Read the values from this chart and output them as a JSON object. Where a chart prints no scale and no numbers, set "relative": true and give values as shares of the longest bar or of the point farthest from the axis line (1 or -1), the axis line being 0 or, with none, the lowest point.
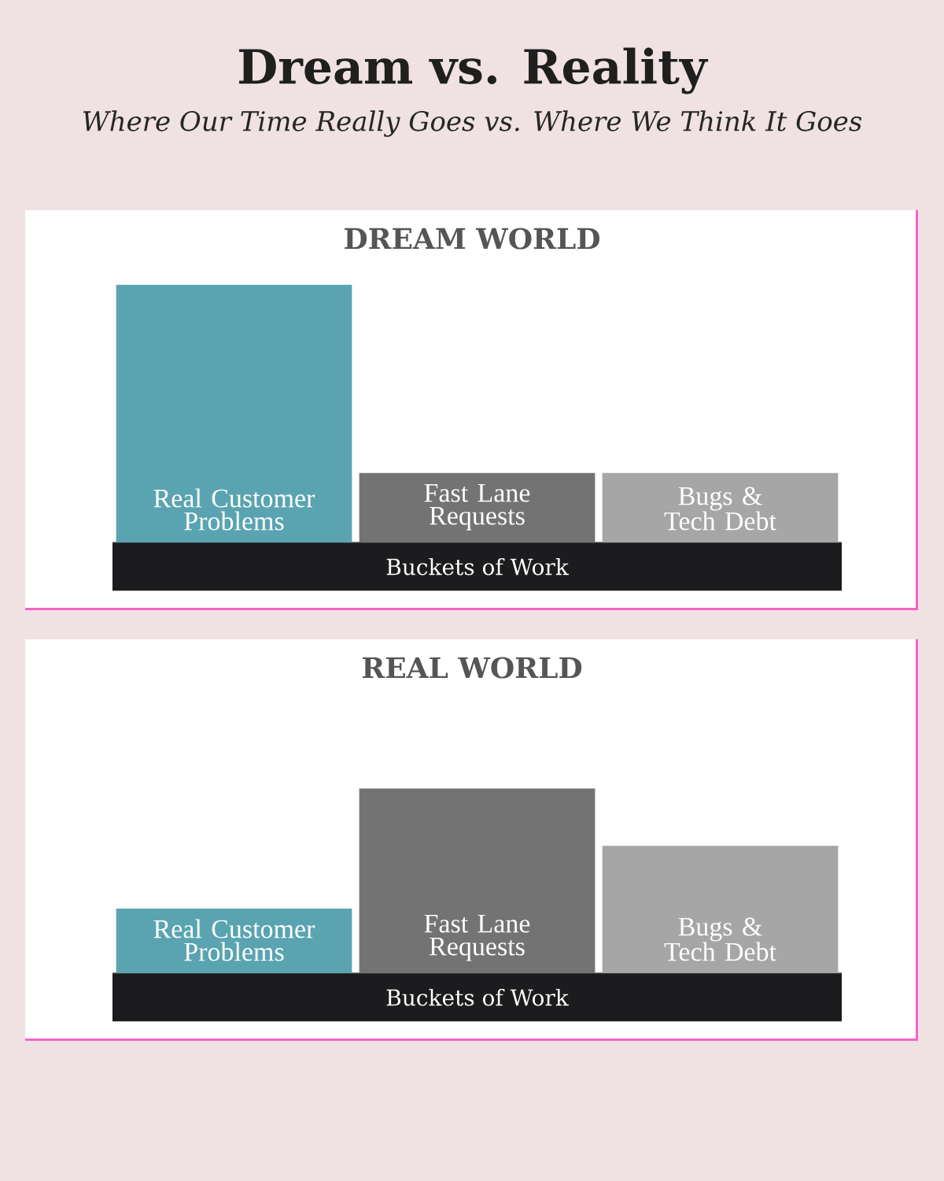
{
  "chart_data": [
    {
      "type": "other",
      "title": "Dream vs. Reality",
      "subtitle": "Where Our Time Really Goes vs. Where We Think It Goes"
    },
    {
      "type": "bar",
      "title": "DREAM WORLD",
      "xlabel": "Buckets of Work",
      "relative": true,
      "categories": [
        "Real Customer Problems",
        "Fast Lane Requests",
        "Bugs & Tech Debt"
      ],
      "values": [
        1,
        0.27,
        0.27
      ],
      "colors": [
        "#5aa4b1",
        "#737373",
        "#a6a6a6"
      ]
    },
    {
      "type": "bar",
      "title": "REAL WORLD",
      "xlabel": "Buckets of Work",
      "relative": true,
      "categories": [
        "Real Customer Problems",
        "Fast Lane Requests",
        "Bugs & Tech Debt"
      ],
      "values": [
        0.35,
        1,
        0.69
      ],
      "colors": [
        "#5aa4b1",
        "#737373",
        "#a6a6a6"
      ]
    }
  ]
}
